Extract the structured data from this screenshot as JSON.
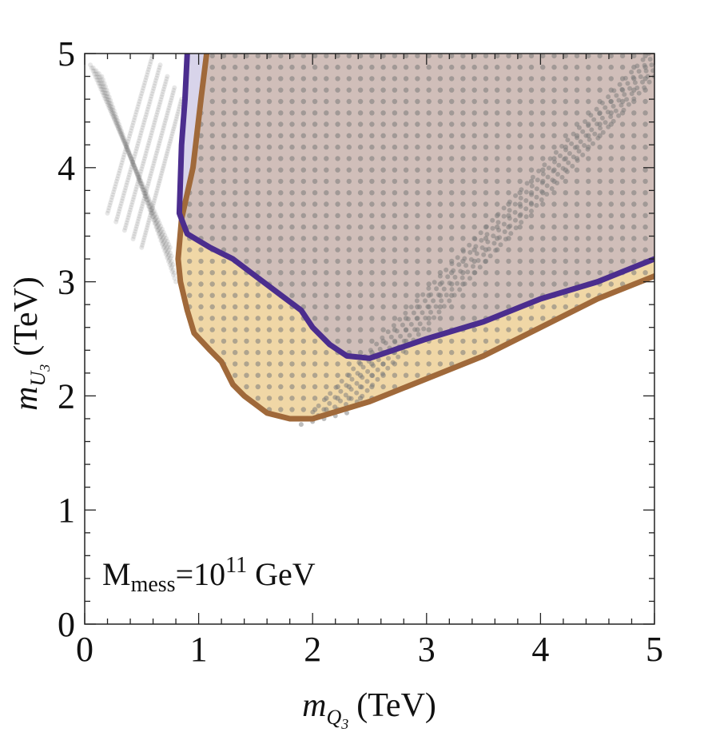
{
  "chart_data": {
    "type": "scatter",
    "title": "",
    "xlabel": {
      "var": "m",
      "sub": "Q",
      "subsub": "3",
      "unit": "(TeV)"
    },
    "ylabel": {
      "var": "m",
      "sub": "U",
      "subsub": "3",
      "unit": "(TeV)"
    },
    "xlim": [
      0,
      5
    ],
    "ylim": [
      0,
      5
    ],
    "xticks": [
      "0",
      "1",
      "2",
      "3",
      "4",
      "5"
    ],
    "yticks": [
      "0",
      "1",
      "2",
      "3",
      "4",
      "5"
    ],
    "grid": false,
    "annotation": {
      "base": "M",
      "sub": "mess",
      "eq": "=10",
      "exp": "11",
      "unit": " GeV"
    },
    "regions": [
      {
        "color": "#e3b75c",
        "boundary_color": "#a0693a",
        "boundary": [
          [
            1.07,
            5.0
          ],
          [
            1.02,
            4.6
          ],
          [
            0.95,
            4.0
          ],
          [
            0.85,
            3.55
          ],
          [
            0.82,
            3.2
          ],
          [
            0.84,
            3.0
          ],
          [
            0.9,
            2.75
          ],
          [
            0.96,
            2.55
          ],
          [
            1.1,
            2.4
          ],
          [
            1.2,
            2.3
          ],
          [
            1.3,
            2.1
          ],
          [
            1.4,
            2.0
          ],
          [
            1.6,
            1.85
          ],
          [
            1.8,
            1.8
          ],
          [
            2.0,
            1.8
          ],
          [
            2.5,
            1.95
          ],
          [
            3.0,
            2.15
          ],
          [
            3.5,
            2.35
          ],
          [
            4.0,
            2.6
          ],
          [
            4.5,
            2.85
          ],
          [
            5.0,
            3.05
          ]
        ]
      },
      {
        "color": "#a8a0d0",
        "boundary_color": "#4b2d8e",
        "boundary": [
          [
            0.9,
            5.0
          ],
          [
            0.88,
            4.6
          ],
          [
            0.85,
            4.2
          ],
          [
            0.83,
            3.6
          ],
          [
            0.9,
            3.42
          ],
          [
            1.1,
            3.3
          ],
          [
            1.3,
            3.2
          ],
          [
            1.5,
            3.05
          ],
          [
            1.7,
            2.9
          ],
          [
            1.9,
            2.75
          ],
          [
            2.0,
            2.6
          ],
          [
            2.15,
            2.45
          ],
          [
            2.3,
            2.35
          ],
          [
            2.5,
            2.33
          ],
          [
            3.0,
            2.5
          ],
          [
            3.5,
            2.65
          ],
          [
            4.0,
            2.85
          ],
          [
            4.5,
            3.0
          ],
          [
            5.0,
            3.2
          ]
        ]
      }
    ],
    "scatter_bands": [
      {
        "name": "",
        "x_start": [
          0.05,
          0.15
        ],
        "y_start": [
          4.9,
          4.8
        ],
        "x_end": [
          0.75,
          0.8
        ],
        "y_end": [
          3.3,
          3.0
        ]
      },
      {
        "name": "",
        "x_start": [
          0.6,
          0.85
        ],
        "y_start": [
          5.0,
          4.6
        ],
        "x_end": [
          0.2,
          0.5
        ],
        "y_end": [
          3.6,
          3.3
        ]
      },
      {
        "name": "",
        "x_start": [
          1.9,
          2.3
        ],
        "y_start": [
          1.75,
          1.85
        ],
        "x_end": [
          4.95,
          5.0
        ],
        "y_end": [
          5.0,
          4.8
        ]
      }
    ],
    "colors": {
      "boundary_outer": "#a0693a",
      "boundary_inner": "#4b2d8e",
      "points": "#7a7a7a"
    }
  }
}
